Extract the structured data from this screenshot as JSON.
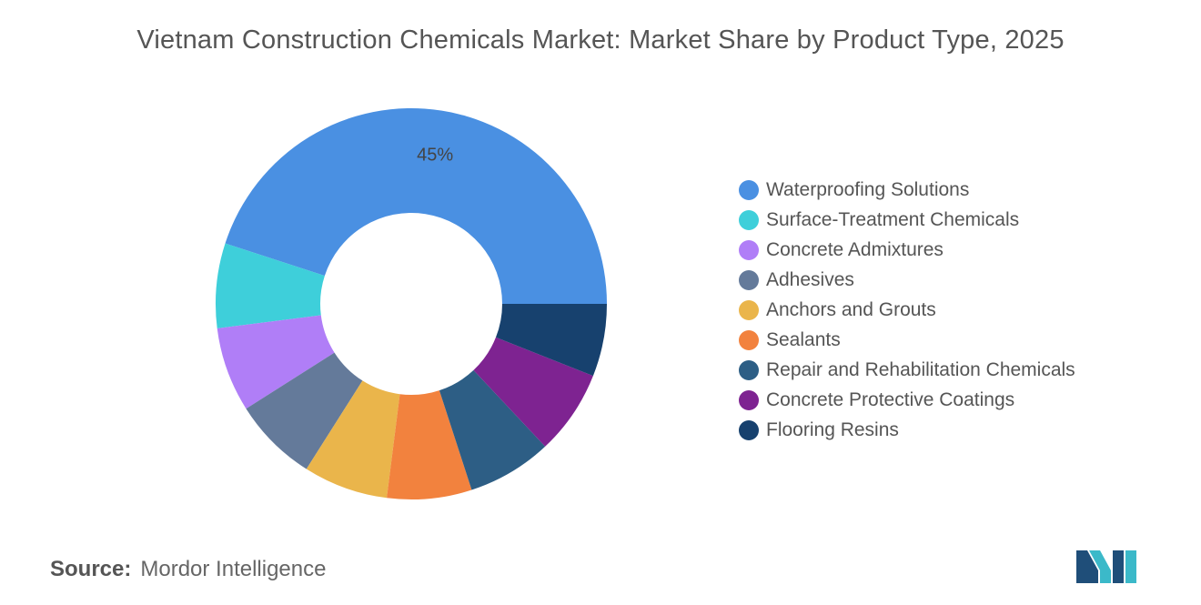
{
  "title": "Vietnam Construction Chemicals Market: Market Share by Product Type, 2025",
  "source": {
    "label": "Source:",
    "name": "Mordor Intelligence"
  },
  "logo": {
    "icon": "mordor-intelligence-logo-icon",
    "colors": [
      "#1f4e79",
      "#3bb9c9"
    ]
  },
  "chart_data": {
    "type": "pie",
    "variant": "donut",
    "title": "Vietnam Construction Chemicals Market: Market Share by Product Type, 2025",
    "legend_position": "right",
    "series": [
      {
        "name": "Waterproofing Solutions",
        "value": 45,
        "color": "#4a90e2",
        "label": "45%"
      },
      {
        "name": "Surface-Treatment Chemicals",
        "value": 7,
        "color": "#3ecfda",
        "label": ""
      },
      {
        "name": "Concrete Admixtures",
        "value": 7,
        "color": "#b07ef7",
        "label": ""
      },
      {
        "name": "Adhesives",
        "value": 7,
        "color": "#647a9a",
        "label": ""
      },
      {
        "name": "Anchors and Grouts",
        "value": 7,
        "color": "#eab54b",
        "label": ""
      },
      {
        "name": "Sealants",
        "value": 7,
        "color": "#f2823e",
        "label": ""
      },
      {
        "name": "Repair and Rehabilitation Chemicals",
        "value": 7,
        "color": "#2d5e85",
        "label": ""
      },
      {
        "name": "Concrete Protective Coatings",
        "value": 7,
        "color": "#7e2391",
        "label": ""
      },
      {
        "name": "Flooring Resins",
        "value": 6,
        "color": "#17416e",
        "label": ""
      }
    ]
  }
}
